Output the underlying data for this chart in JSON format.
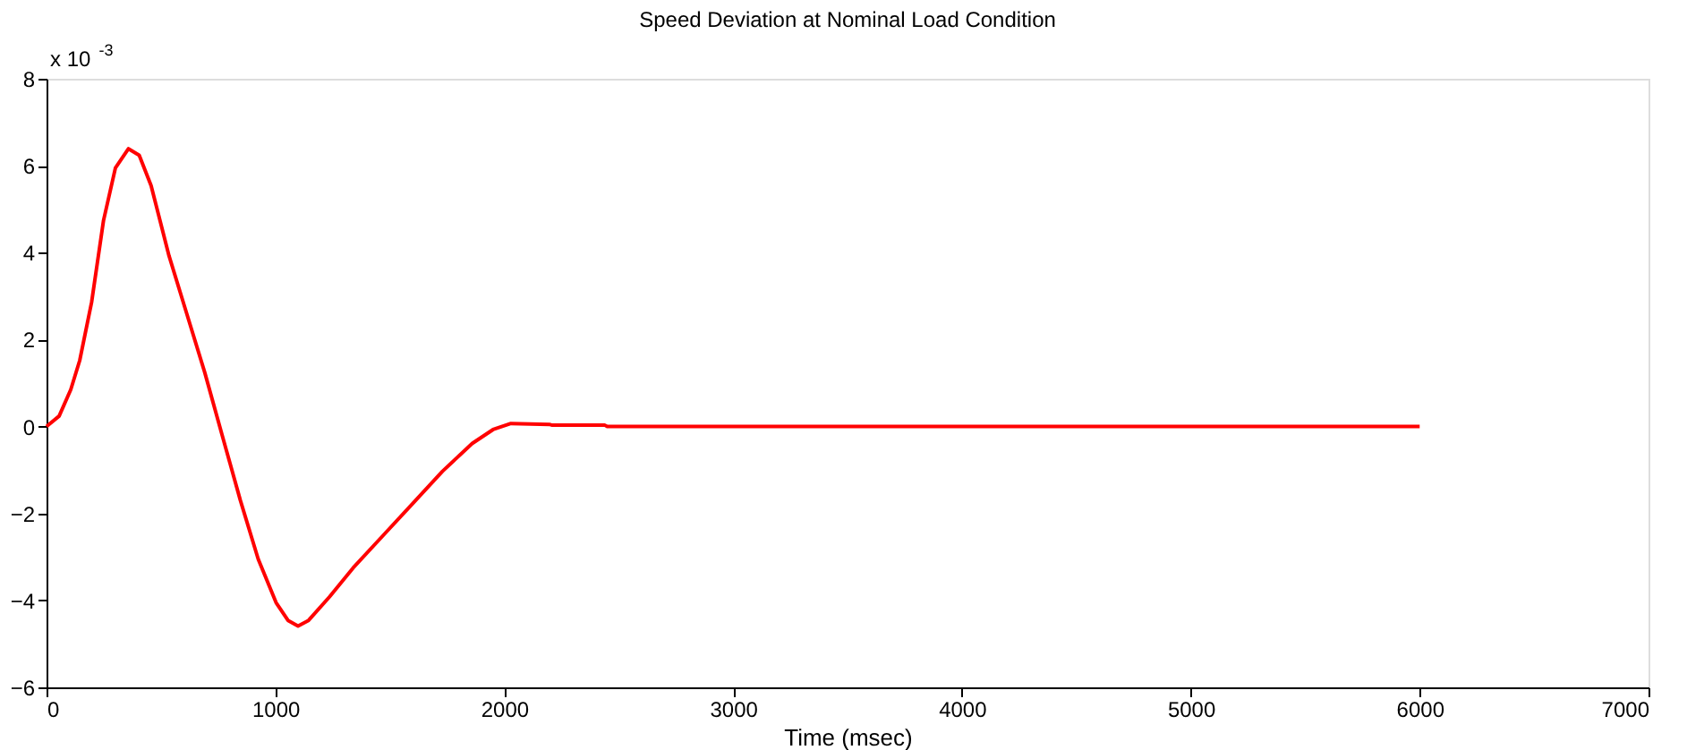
{
  "chart_data": {
    "type": "line",
    "title": "Speed Deviation at Nominal Load Condition",
    "xlabel": "Time (msec)",
    "annotations": [
      "x 10$^{-3}$"
    ],
    "x": [
      0,
      55,
      106,
      145,
      197,
      249,
      301,
      358,
      405,
      457,
      535,
      613,
      691,
      769,
      847,
      925,
      1003,
      1055,
      1099,
      1145,
      1236,
      1340,
      1470,
      1600,
      1730,
      1860,
      1951,
      2029,
      2197,
      2210,
      2440,
      2450,
      6000
    ],
    "series": [
      {
        "color": "#ff0000",
        "values": [
          0,
          0.24,
          0.85,
          1.52,
          2.86,
          4.74,
          5.95,
          6.39,
          6.24,
          5.54,
          3.93,
          2.59,
          1.25,
          -0.23,
          -1.7,
          -3.05,
          -4.05,
          -4.46,
          -4.59,
          -4.46,
          -3.92,
          -3.25,
          -2.51,
          -1.77,
          -1.03,
          -0.39,
          -0.07,
          0.07,
          0.05,
          0.03,
          0.03,
          0,
          0
        ]
      }
    ],
    "xlim": [
      0,
      7000
    ],
    "xticks": [
      0,
      1000,
      2000,
      3000,
      4000,
      5000,
      6000,
      7000
    ],
    "ylim": [
      -6,
      8
    ],
    "yticks": [
      -6,
      -4,
      -2,
      0,
      2,
      4,
      6,
      8
    ],
    "grid": false,
    "marker": "none",
    "line_style": "solid"
  }
}
